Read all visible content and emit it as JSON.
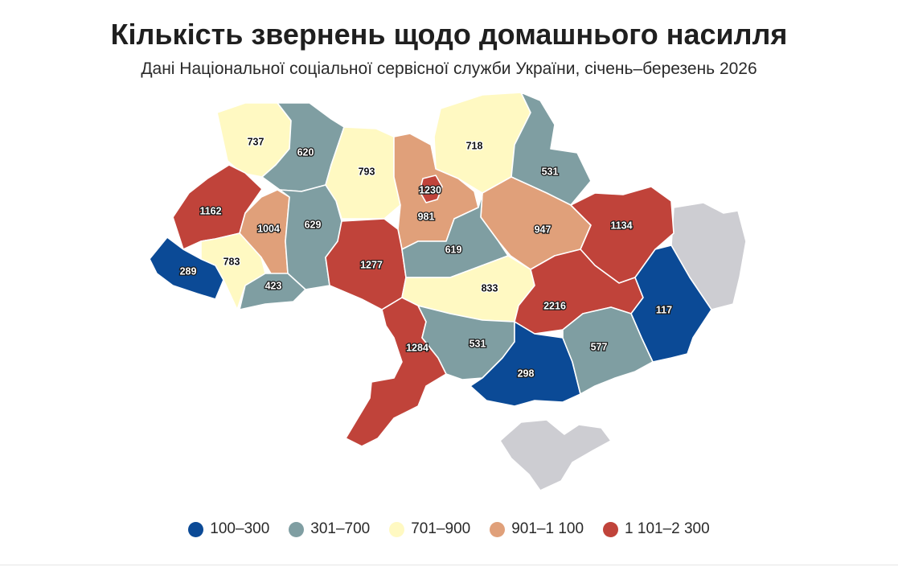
{
  "title": "Кількість звернень щодо домашнього насилля",
  "subtitle": "Дані Національної соціальної сервісної служби України, січень–березень 2026",
  "colors": {
    "c1": "#0b4a96",
    "c2": "#7f9ea2",
    "c3": "#fff9c2",
    "c4": "#e0a07a",
    "c5": "#c0433a",
    "nodata": "#cdcdd2"
  },
  "regions": {
    "volyn": "737",
    "rivne": "620",
    "zhytomyr": "793",
    "chernihiv": "718",
    "sumy": "531",
    "lviv": "1162",
    "ternopil": "1004",
    "khmelnytskyi": "629",
    "kyiv_oblast": "981",
    "kyiv_city": "1230",
    "poltava": "947",
    "kharkiv": "1134",
    "zakarpattia": "289",
    "ivano_frankivsk": "783",
    "chernivtsi": "423",
    "vinnytsia": "1277",
    "cherkasy": "619",
    "kirovohrad": "833",
    "dnipro": "2216",
    "luhansk": "117",
    "odesa": "1284",
    "mykolaiv": "531",
    "kherson": "298",
    "zaporizhzhia": "577"
  },
  "legend": [
    {
      "label": "100–300",
      "color": "#0b4a96"
    },
    {
      "label": "301–700",
      "color": "#7f9ea2"
    },
    {
      "label": "701–900",
      "color": "#fff9c2"
    },
    {
      "label": "901–1 100",
      "color": "#e0a07a"
    },
    {
      "label": "1 101–2 300",
      "color": "#c0433a"
    }
  ]
}
